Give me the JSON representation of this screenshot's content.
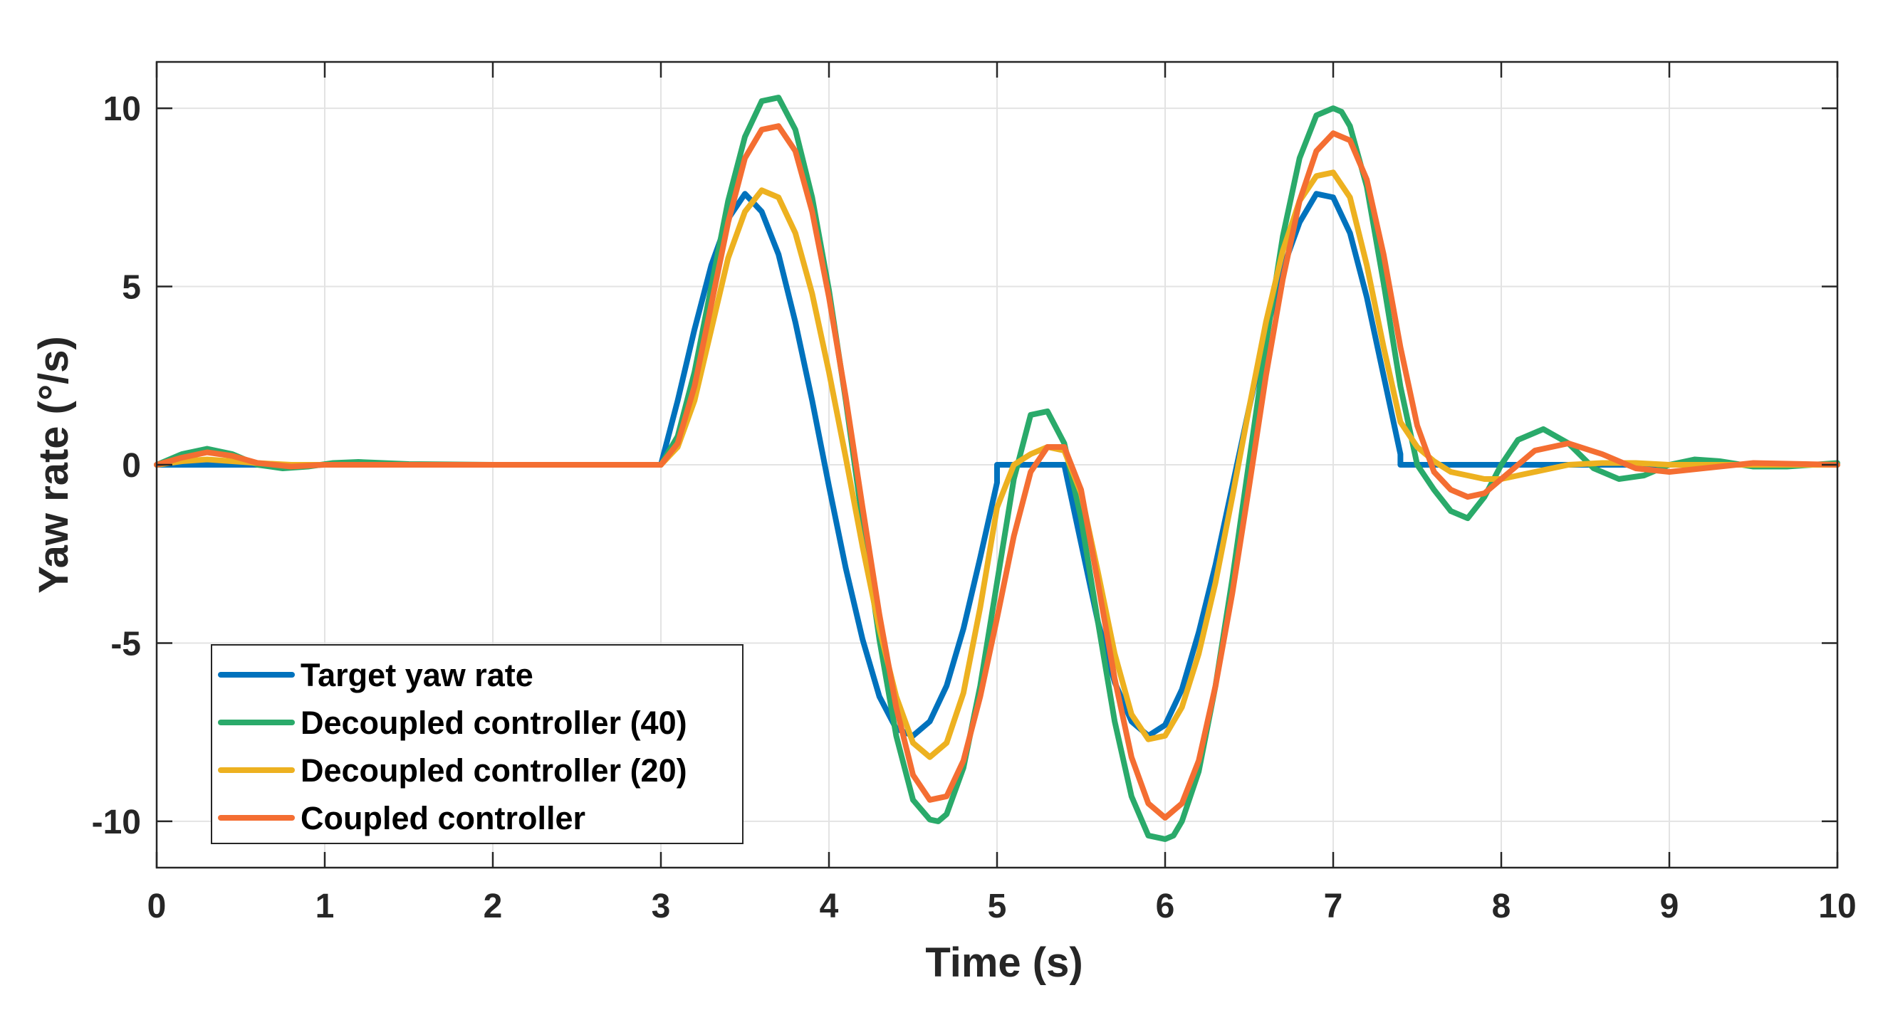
{
  "chart_data": {
    "type": "line",
    "title": "",
    "xlabel": "Time (s)",
    "ylabel": "Yaw rate (°/s)",
    "xlim": [
      0,
      10
    ],
    "ylim": [
      -11.3,
      11.3
    ],
    "xticks": [
      0,
      1,
      2,
      3,
      4,
      5,
      6,
      7,
      8,
      9,
      10
    ],
    "yticks": [
      -10,
      -5,
      0,
      5,
      10
    ],
    "xtick_labels": [
      "0",
      "1",
      "2",
      "3",
      "4",
      "5",
      "6",
      "7",
      "8",
      "9",
      "10"
    ],
    "ytick_labels": [
      "-10",
      "-5",
      "0",
      "5",
      "10"
    ],
    "grid": true,
    "legend_position": "bottom-left",
    "series": [
      {
        "name": "Target yaw rate",
        "color": "#0072BD",
        "x": [
          0,
          3,
          3.1,
          3.2,
          3.3,
          3.4,
          3.5,
          3.6,
          3.7,
          3.8,
          3.9,
          4.0,
          4.1,
          4.2,
          4.3,
          4.4,
          4.5,
          4.6,
          4.7,
          4.8,
          4.9,
          5.0,
          5.0,
          5.4,
          5.5,
          5.6,
          5.7,
          5.8,
          5.9,
          6.0,
          6.1,
          6.2,
          6.3,
          6.4,
          6.5,
          6.6,
          6.7,
          6.8,
          6.9,
          7.0,
          7.1,
          7.2,
          7.3,
          7.4,
          7.4,
          10
        ],
        "values": [
          0,
          0,
          1.8,
          3.8,
          5.6,
          6.9,
          7.6,
          7.1,
          5.9,
          4.0,
          1.8,
          -0.6,
          -2.9,
          -4.9,
          -6.5,
          -7.4,
          -7.6,
          -7.2,
          -6.2,
          -4.6,
          -2.6,
          -0.5,
          0,
          0,
          -2.2,
          -4.4,
          -6.1,
          -7.2,
          -7.6,
          -7.3,
          -6.3,
          -4.7,
          -2.8,
          -0.6,
          1.6,
          3.7,
          5.5,
          6.8,
          7.6,
          7.5,
          6.5,
          4.7,
          2.5,
          0.3,
          0,
          0
        ]
      },
      {
        "name": "Decoupled controller (40)",
        "color": "#2AAA6A",
        "x": [
          0,
          0.15,
          0.3,
          0.45,
          0.6,
          0.75,
          0.9,
          1.05,
          1.2,
          1.5,
          2.0,
          2.5,
          3.0,
          3.1,
          3.2,
          3.3,
          3.4,
          3.5,
          3.6,
          3.7,
          3.8,
          3.9,
          4.0,
          4.1,
          4.2,
          4.3,
          4.4,
          4.5,
          4.6,
          4.65,
          4.7,
          4.8,
          4.9,
          5.0,
          5.1,
          5.2,
          5.3,
          5.4,
          5.5,
          5.6,
          5.7,
          5.8,
          5.9,
          6.0,
          6.05,
          6.1,
          6.2,
          6.3,
          6.4,
          6.5,
          6.6,
          6.7,
          6.8,
          6.9,
          7.0,
          7.05,
          7.1,
          7.2,
          7.3,
          7.4,
          7.5,
          7.6,
          7.7,
          7.8,
          7.9,
          8.0,
          8.1,
          8.25,
          8.4,
          8.55,
          8.7,
          8.85,
          9.0,
          9.15,
          9.3,
          9.5,
          9.7,
          10
        ],
        "values": [
          0,
          0.3,
          0.45,
          0.3,
          0,
          -0.1,
          -0.05,
          0.05,
          0.08,
          0.02,
          0,
          0,
          0,
          0.8,
          2.6,
          5.0,
          7.4,
          9.2,
          10.2,
          10.3,
          9.4,
          7.5,
          4.9,
          1.8,
          -1.6,
          -4.9,
          -7.6,
          -9.4,
          -9.95,
          -10.0,
          -9.8,
          -8.5,
          -6.2,
          -3.3,
          -0.4,
          1.4,
          1.5,
          0.6,
          -1.5,
          -4.4,
          -7.2,
          -9.3,
          -10.4,
          -10.5,
          -10.4,
          -10.0,
          -8.6,
          -6.2,
          -3.2,
          0.1,
          3.4,
          6.4,
          8.6,
          9.8,
          10.0,
          9.9,
          9.5,
          7.8,
          5.1,
          2.2,
          0,
          -0.7,
          -1.3,
          -1.5,
          -0.9,
          0,
          0.7,
          1.0,
          0.6,
          -0.1,
          -0.4,
          -0.3,
          0,
          0.15,
          0.1,
          -0.05,
          -0.05,
          0.05
        ]
      },
      {
        "name": "Decoupled controller (20)",
        "color": "#EDB120",
        "x": [
          0,
          0.15,
          0.3,
          0.45,
          0.6,
          0.8,
          1.0,
          1.5,
          2.0,
          2.5,
          3.0,
          3.1,
          3.2,
          3.3,
          3.4,
          3.5,
          3.6,
          3.7,
          3.8,
          3.9,
          4.0,
          4.1,
          4.2,
          4.3,
          4.4,
          4.5,
          4.6,
          4.7,
          4.8,
          4.9,
          5.0,
          5.1,
          5.2,
          5.3,
          5.4,
          5.5,
          5.6,
          5.7,
          5.8,
          5.9,
          6.0,
          6.1,
          6.2,
          6.3,
          6.4,
          6.5,
          6.6,
          6.7,
          6.8,
          6.9,
          7.0,
          7.1,
          7.2,
          7.3,
          7.4,
          7.5,
          7.6,
          7.7,
          7.8,
          7.9,
          8.0,
          8.2,
          8.4,
          8.6,
          8.8,
          9.0,
          9.5,
          10
        ],
        "values": [
          0,
          0.1,
          0.15,
          0.1,
          0.05,
          0,
          0,
          0,
          0,
          0,
          0,
          0.5,
          1.8,
          3.8,
          5.8,
          7.1,
          7.7,
          7.5,
          6.5,
          4.8,
          2.6,
          0.2,
          -2.3,
          -4.6,
          -6.5,
          -7.8,
          -8.2,
          -7.8,
          -6.4,
          -4.0,
          -1.2,
          0.0,
          0.3,
          0.5,
          0.4,
          -0.8,
          -3.0,
          -5.3,
          -7.0,
          -7.7,
          -7.6,
          -6.8,
          -5.3,
          -3.3,
          -0.9,
          1.6,
          4.0,
          6.0,
          7.4,
          8.1,
          8.2,
          7.5,
          5.6,
          3.3,
          1.2,
          0.5,
          0.1,
          -0.2,
          -0.3,
          -0.4,
          -0.4,
          -0.2,
          0,
          0.05,
          0.05,
          0,
          0,
          0
        ]
      },
      {
        "name": "Coupled controller",
        "color": "#F46E32",
        "x": [
          0,
          0.15,
          0.3,
          0.45,
          0.6,
          0.8,
          1.0,
          1.5,
          2.0,
          2.5,
          3.0,
          3.1,
          3.2,
          3.3,
          3.4,
          3.5,
          3.6,
          3.7,
          3.8,
          3.9,
          4.0,
          4.1,
          4.2,
          4.3,
          4.4,
          4.5,
          4.6,
          4.7,
          4.8,
          4.9,
          5.0,
          5.1,
          5.2,
          5.3,
          5.4,
          5.5,
          5.6,
          5.7,
          5.8,
          5.9,
          6.0,
          6.1,
          6.2,
          6.3,
          6.4,
          6.5,
          6.6,
          6.7,
          6.8,
          6.9,
          7.0,
          7.1,
          7.2,
          7.3,
          7.4,
          7.5,
          7.6,
          7.7,
          7.8,
          7.9,
          8.0,
          8.2,
          8.4,
          8.6,
          8.8,
          9.0,
          9.2,
          9.5,
          10
        ],
        "values": [
          0,
          0.2,
          0.35,
          0.25,
          0.05,
          -0.05,
          0,
          0,
          0,
          0,
          0,
          0.6,
          2.2,
          4.5,
          6.8,
          8.6,
          9.4,
          9.5,
          8.8,
          7.1,
          4.7,
          1.9,
          -1.2,
          -4.2,
          -6.8,
          -8.7,
          -9.4,
          -9.3,
          -8.3,
          -6.5,
          -4.3,
          -2.0,
          -0.2,
          0.5,
          0.5,
          -0.7,
          -3.3,
          -6.0,
          -8.2,
          -9.5,
          -9.9,
          -9.5,
          -8.3,
          -6.2,
          -3.6,
          -0.6,
          2.5,
          5.2,
          7.4,
          8.8,
          9.3,
          9.1,
          8.0,
          5.9,
          3.3,
          1.1,
          -0.2,
          -0.7,
          -0.9,
          -0.8,
          -0.4,
          0.4,
          0.6,
          0.3,
          -0.1,
          -0.2,
          -0.1,
          0.05,
          0
        ]
      }
    ]
  }
}
